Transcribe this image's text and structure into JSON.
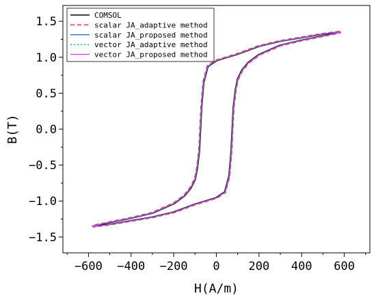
{
  "chart_data": {
    "type": "line",
    "xlabel": "H(A/m)",
    "ylabel": "B(T)",
    "xlim": [
      -720,
      720
    ],
    "ylim": [
      -1.72,
      1.72
    ],
    "xticks": [
      -600,
      -400,
      -200,
      0,
      200,
      400,
      600
    ],
    "yticks": [
      -1.5,
      -1.0,
      -0.5,
      0.0,
      0.5,
      1.0,
      1.5
    ],
    "xtick_labels": [
      "−600",
      "−400",
      "−200",
      "0",
      "200",
      "400",
      "600"
    ],
    "ytick_labels": [
      "−1.5",
      "−1.0",
      "−0.5",
      "0.0",
      "0.5",
      "1.0",
      "1.5"
    ],
    "legend_position": "top-left",
    "grid": false,
    "loop": {
      "upper_branch": {
        "H": [
          580,
          500,
          400,
          300,
          200,
          100,
          0,
          -40,
          -60,
          -70,
          -75,
          -80,
          -90,
          -100,
          -120,
          -150,
          -200,
          -300,
          -400,
          -500,
          -580
        ],
        "B": [
          1.35,
          1.32,
          1.27,
          1.22,
          1.15,
          1.04,
          0.95,
          0.87,
          0.65,
          0.3,
          0.0,
          -0.3,
          -0.55,
          -0.7,
          -0.82,
          -0.93,
          -1.04,
          -1.17,
          -1.24,
          -1.3,
          -1.35
        ]
      },
      "lower_branch": {
        "H": [
          -580,
          -500,
          -400,
          -300,
          -200,
          -100,
          0,
          40,
          60,
          70,
          75,
          80,
          90,
          100,
          120,
          150,
          200,
          300,
          400,
          500,
          580
        ],
        "B": [
          -1.35,
          -1.32,
          -1.27,
          -1.22,
          -1.15,
          -1.04,
          -0.95,
          -0.87,
          -0.65,
          -0.3,
          0.0,
          0.3,
          0.55,
          0.7,
          0.82,
          0.93,
          1.04,
          1.17,
          1.24,
          1.3,
          1.35
        ]
      }
    },
    "series": [
      {
        "name": "COMSOL",
        "color": "#000000",
        "dash": "solid",
        "dH": 2,
        "dB": 0.0
      },
      {
        "name": "scalar JA_adaptive method",
        "color": "#e8262b",
        "dash": "dashed",
        "dH": -3,
        "dB": 0.012
      },
      {
        "name": "scalar JA_proposed method",
        "color": "#1f6fc6",
        "dash": "solid",
        "dH": -1,
        "dB": 0.004
      },
      {
        "name": "vector JA_adaptive method",
        "color": "#1aa37a",
        "dash": "dotted",
        "dH": -2,
        "dB": 0.008
      },
      {
        "name": "vector JA_proposed method",
        "color": "#c04ed8",
        "dash": "solid",
        "dH": 0,
        "dB": 0.006
      }
    ]
  }
}
